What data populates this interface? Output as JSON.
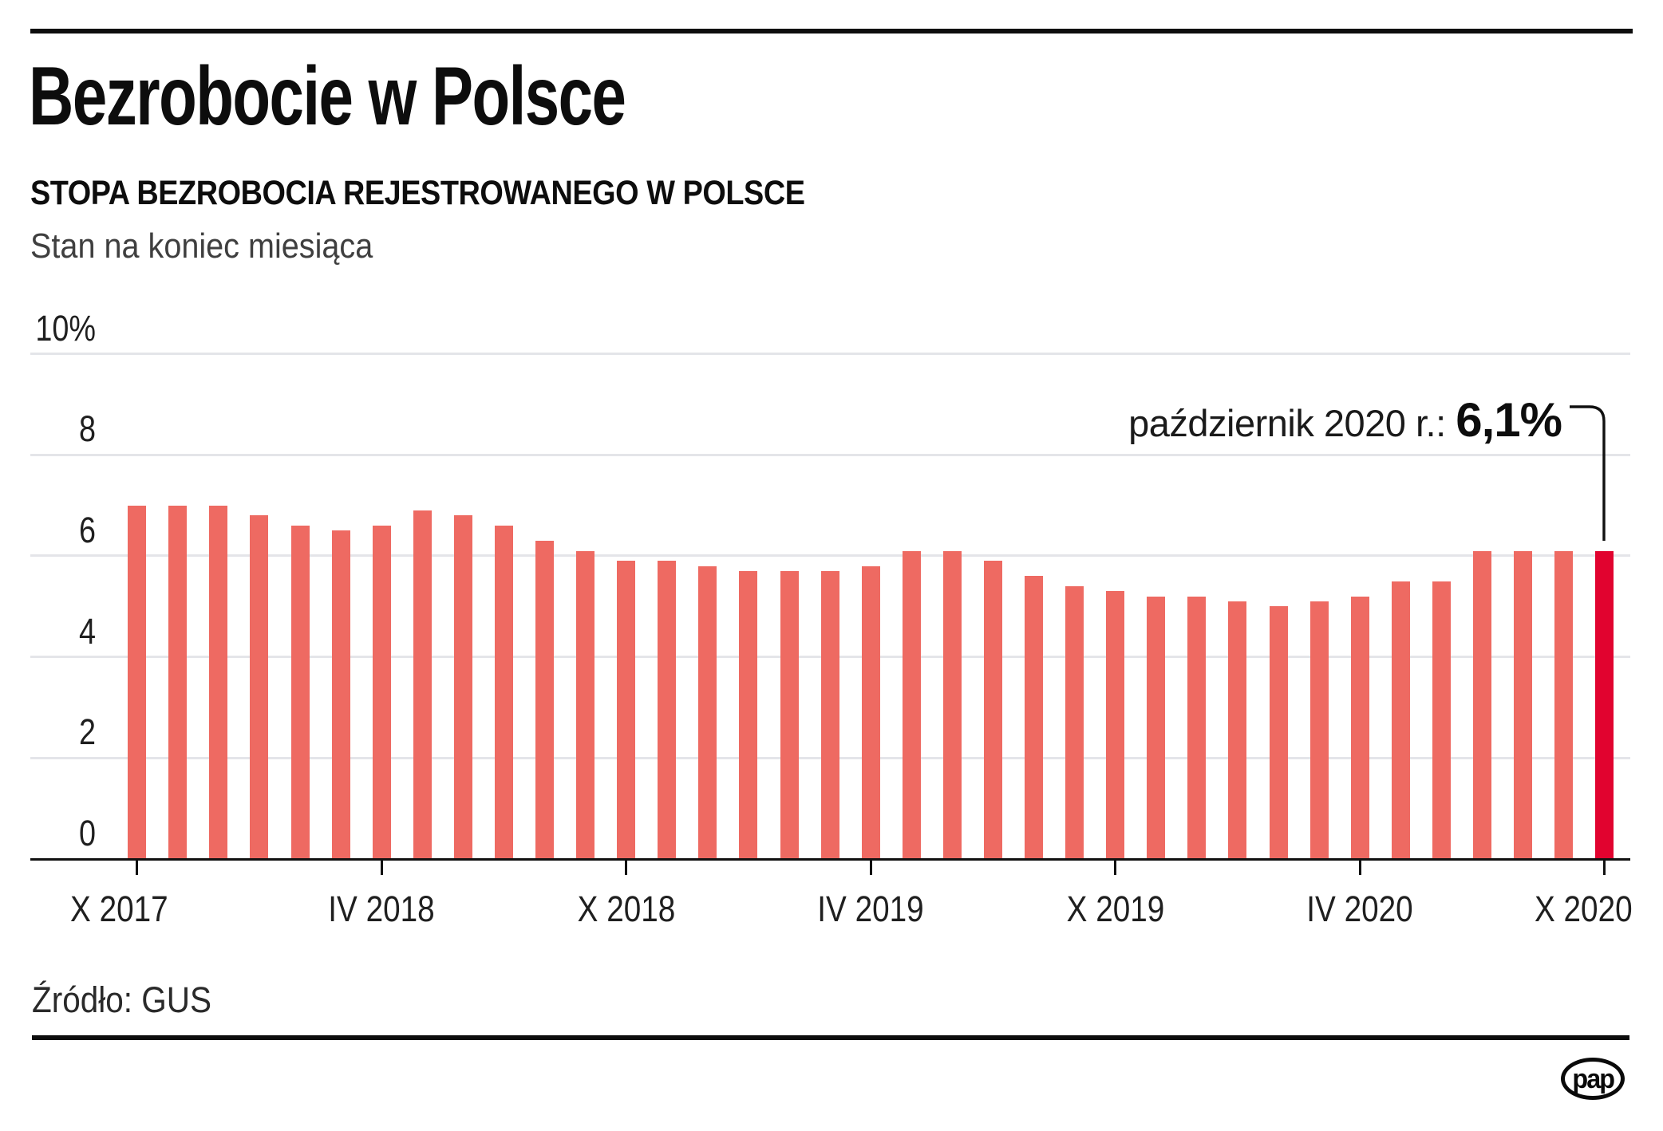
{
  "header": {
    "title": "Bezrobocie w Polsce",
    "subtitle": "STOPA BEZROBOCIA REJESTROWANEGO W POLSCE",
    "note": "Stan na koniec miesiąca"
  },
  "chart_data": {
    "type": "bar",
    "title": "Bezrobocie w Polsce",
    "subtitle": "STOPA BEZROBOCIA REJESTROWANEGO W POLSCE",
    "note": "Stan na koniec miesiąca",
    "unit": "%",
    "categories": [
      "X 2017",
      "XI 2017",
      "XII 2017",
      "I 2018",
      "II 2018",
      "III 2018",
      "IV 2018",
      "V 2018",
      "VI 2018",
      "VII 2018",
      "VIII 2018",
      "IX 2018",
      "X 2018",
      "XI 2018",
      "XII 2018",
      "I 2019",
      "II 2019",
      "III 2019",
      "IV 2019",
      "V 2019",
      "VI 2019",
      "VII 2019",
      "VIII 2019",
      "IX 2019",
      "X 2019",
      "XI 2019",
      "XII 2019",
      "I 2020",
      "II 2020",
      "III 2020",
      "IV 2020",
      "V 2020",
      "VI 2020",
      "VII 2020",
      "VIII 2020",
      "IX 2020",
      "X 2020"
    ],
    "values": [
      7.0,
      7.0,
      7.0,
      6.8,
      6.6,
      6.5,
      6.6,
      6.9,
      6.8,
      6.6,
      6.3,
      6.1,
      5.9,
      5.9,
      5.8,
      5.7,
      5.7,
      5.7,
      5.8,
      6.1,
      6.1,
      5.9,
      5.6,
      5.4,
      5.3,
      5.2,
      5.2,
      5.1,
      5.0,
      5.1,
      5.2,
      5.5,
      5.5,
      6.1,
      6.1,
      6.1,
      6.1
    ],
    "highlight_index": 36,
    "ylim": [
      0,
      10
    ],
    "grid": true,
    "legend": "none",
    "yticks": [
      {
        "value": 10,
        "label": "10%"
      },
      {
        "value": 8,
        "label": "8"
      },
      {
        "value": 6,
        "label": "6"
      },
      {
        "value": 4,
        "label": "4"
      },
      {
        "value": 2,
        "label": "2"
      },
      {
        "value": 0,
        "label": "0"
      }
    ],
    "xticks": [
      {
        "index": 0,
        "label": "X 2017",
        "align": "left"
      },
      {
        "index": 6,
        "label": "IV 2018",
        "align": "center"
      },
      {
        "index": 12,
        "label": "X 2018",
        "align": "center"
      },
      {
        "index": 18,
        "label": "IV 2019",
        "align": "center"
      },
      {
        "index": 24,
        "label": "X 2019",
        "align": "center"
      },
      {
        "index": 30,
        "label": "IV 2020",
        "align": "center"
      },
      {
        "index": 36,
        "label": "X 2020",
        "align": "right"
      }
    ],
    "annotation": {
      "label": "październik 2020 r.: ",
      "value": "6,1%"
    },
    "colors": {
      "bar": "#ee6a62",
      "highlight": "#e1032f",
      "gridline": "#e4e5e9",
      "axis": "#111111",
      "accent_text": "#0d0d0d"
    }
  },
  "footer": {
    "source": "Źródło: GUS",
    "logo": "pap"
  }
}
